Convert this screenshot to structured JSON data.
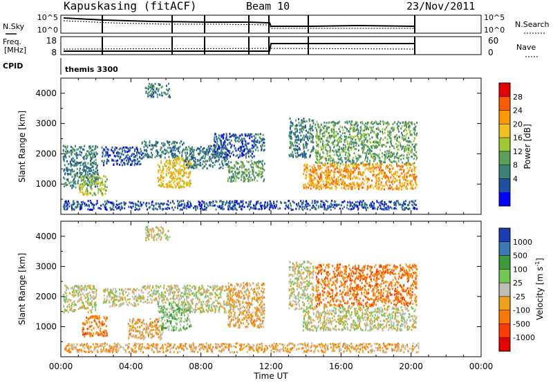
{
  "header": {
    "title": "Kapuskasing (fitACF)",
    "beam": "Beam 10",
    "date": "23/Nov/2011"
  },
  "panels": {
    "nsky": {
      "label": "N.Sky",
      "right_label": "N.Search",
      "left_ticks": [
        "10^5",
        "10^0"
      ],
      "right_ticks": [
        "10^5",
        "10^0"
      ]
    },
    "freq": {
      "label_top": "Freq.",
      "label_bottom": "[MHz]",
      "right_label": "Nave",
      "left_ticks": [
        "18",
        "8"
      ],
      "right_ticks": [
        "60",
        "0"
      ]
    },
    "cpid": {
      "label": "CPID",
      "value": "themis 3300"
    }
  },
  "colorbars": {
    "power": {
      "label": "Power [dB]",
      "ticks": [
        "28",
        "24",
        "20",
        "16",
        "12",
        "8",
        "4"
      ],
      "colors": [
        "#e60000",
        "#ff5a00",
        "#ff9900",
        "#f0c020",
        "#a0c830",
        "#5aa05a",
        "#3c8278",
        "#1e50a0",
        "#0000ff"
      ]
    },
    "velocity": {
      "label": "Velocity [m s",
      "label_sup": "-1",
      "label_end": "]",
      "ticks": [
        "1000",
        "500",
        "100",
        "25",
        "-25",
        "-100",
        "-500",
        "-1000"
      ],
      "colors": [
        "#1e3cb4",
        "#3c78b4",
        "#3c9a3c",
        "#70c850",
        "#bebeb4",
        "#f0a020",
        "#ff7800",
        "#ff3c00",
        "#e60000"
      ]
    }
  },
  "chart_data": [
    {
      "type": "heatmap",
      "name": "power",
      "ylabel": "Slant Range [km]",
      "yticks": [
        1000,
        2000,
        3000,
        4000
      ],
      "ylim": [
        0,
        4500
      ],
      "x_hours_range": [
        0,
        24
      ],
      "regions": [
        {
          "t0": 0.1,
          "t1": 2.1,
          "r0": 900,
          "r1": 2300,
          "c": 6
        },
        {
          "t0": 1.0,
          "t1": 2.6,
          "r0": 650,
          "r1": 1300,
          "c": 4
        },
        {
          "t0": 2.3,
          "t1": 4.6,
          "r0": 1650,
          "r1": 2250,
          "c": 7
        },
        {
          "t0": 4.6,
          "t1": 7.0,
          "r0": 1900,
          "r1": 2450,
          "c": 6
        },
        {
          "t0": 5.5,
          "t1": 7.4,
          "r0": 900,
          "r1": 1900,
          "c": 3
        },
        {
          "t0": 7.0,
          "t1": 9.5,
          "r0": 1550,
          "r1": 2300,
          "c": 6
        },
        {
          "t0": 8.7,
          "t1": 11.0,
          "r0": 1900,
          "r1": 2700,
          "c": 7
        },
        {
          "t0": 9.5,
          "t1": 11.6,
          "r0": 1100,
          "r1": 1800,
          "c": 5
        },
        {
          "t0": 11.0,
          "t1": 11.6,
          "r0": 2100,
          "r1": 2700,
          "c": 6
        },
        {
          "t0": 13.0,
          "t1": 14.4,
          "r0": 1900,
          "r1": 3200,
          "c": 6
        },
        {
          "t0": 13.8,
          "t1": 20.3,
          "r0": 850,
          "r1": 1700,
          "c": 2
        },
        {
          "t0": 14.5,
          "t1": 20.3,
          "r0": 1700,
          "r1": 3100,
          "c": 5
        },
        {
          "t0": 4.8,
          "t1": 6.2,
          "r0": 3900,
          "r1": 4350,
          "c": 6
        },
        {
          "t0": 0.1,
          "t1": 20.4,
          "r0": 180,
          "r1": 480,
          "c": 7
        }
      ]
    },
    {
      "type": "heatmap",
      "name": "velocity",
      "ylabel": "Slant Range [km]",
      "yticks": [
        1000,
        2000,
        3000,
        4000
      ],
      "ylim": [
        0,
        4500
      ],
      "xlabel": "Time UT",
      "xticks": [
        "00:00",
        "04:00",
        "08:00",
        "12:00",
        "16:00",
        "20:00",
        "00:00"
      ],
      "x_hours_range": [
        0,
        24
      ],
      "regions": [
        {
          "t0": 0.1,
          "t1": 2.0,
          "r0": 1500,
          "r1": 2400,
          "c": 4
        },
        {
          "t0": 1.2,
          "t1": 2.6,
          "r0": 700,
          "r1": 1400,
          "c": 6
        },
        {
          "t0": 2.4,
          "t1": 4.6,
          "r0": 1700,
          "r1": 2300,
          "c": 4
        },
        {
          "t0": 3.8,
          "t1": 5.8,
          "r0": 600,
          "r1": 1300,
          "c": 5
        },
        {
          "t0": 4.6,
          "t1": 7.0,
          "r0": 1800,
          "r1": 2400,
          "c": 4
        },
        {
          "t0": 5.5,
          "t1": 7.4,
          "r0": 900,
          "r1": 1800,
          "c": 3
        },
        {
          "t0": 7.0,
          "t1": 9.8,
          "r0": 1500,
          "r1": 2400,
          "c": 4
        },
        {
          "t0": 9.5,
          "t1": 11.6,
          "r0": 1000,
          "r1": 2500,
          "c": 5
        },
        {
          "t0": 13.0,
          "t1": 14.4,
          "r0": 1600,
          "r1": 3200,
          "c": 4
        },
        {
          "t0": 13.8,
          "t1": 20.3,
          "r0": 900,
          "r1": 1700,
          "c": 4
        },
        {
          "t0": 14.5,
          "t1": 20.3,
          "r0": 1700,
          "r1": 3100,
          "c": 6
        },
        {
          "t0": 4.8,
          "t1": 6.2,
          "r0": 3900,
          "r1": 4350,
          "c": 4
        },
        {
          "t0": 0.1,
          "t1": 20.4,
          "r0": 180,
          "r1": 480,
          "c": 5
        }
      ]
    }
  ]
}
